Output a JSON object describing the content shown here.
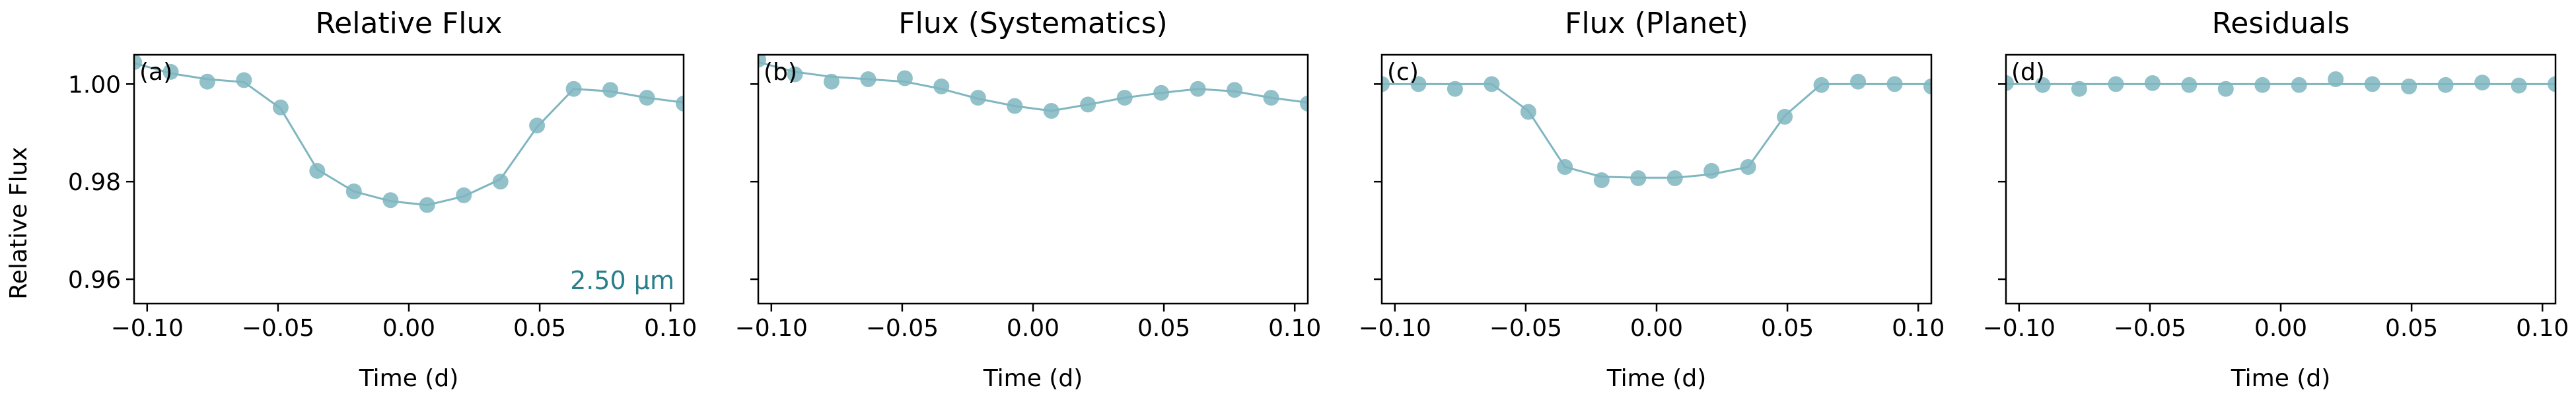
{
  "figure": {
    "shared_ylabel": "Relative Flux",
    "shared_xlabel": "Time (d)",
    "point_color": "#7fb6c0",
    "line_color": "#7fb6c0",
    "wavelength_color": "#2a7f8a",
    "wavelength_label": "2.50 µm"
  },
  "chart_data": [
    {
      "type": "scatter",
      "title": "Relative Flux",
      "panel_label": "(a)",
      "xlabel": "Time (d)",
      "ylabel": "Relative Flux",
      "xlim": [
        -0.105,
        0.105
      ],
      "ylim": [
        0.955,
        1.006
      ],
      "xticks": [
        -0.1,
        -0.05,
        0.0,
        0.05,
        0.1
      ],
      "xtick_labels": [
        "−0.10",
        "−0.05",
        "0.00",
        "0.05",
        "0.10"
      ],
      "yticks": [
        0.96,
        0.98,
        1.0
      ],
      "ytick_labels": [
        "0.96",
        "0.98",
        "1.00"
      ],
      "annotation": "2.50 µm",
      "series": [
        {
          "x": [
            -0.105,
            -0.091,
            -0.077,
            -0.063,
            -0.049,
            -0.035,
            -0.021,
            -0.007,
            0.007,
            0.021,
            0.035,
            0.049,
            0.063,
            0.077,
            0.091,
            0.105
          ],
          "y": [
            1.0045,
            1.0025,
            1.0005,
            1.0008,
            0.9952,
            0.9822,
            0.978,
            0.9762,
            0.9752,
            0.9772,
            0.98,
            0.9915,
            0.999,
            0.9988,
            0.9972,
            0.996
          ],
          "model": [
            1.0043,
            1.0022,
            1.001,
            1.0004,
            0.995,
            0.9825,
            0.978,
            0.976,
            0.9752,
            0.977,
            0.9805,
            0.9912,
            0.999,
            0.9985,
            0.9972,
            0.9962
          ]
        }
      ]
    },
    {
      "type": "scatter",
      "title": "Flux (Systematics)",
      "panel_label": "(b)",
      "xlabel": "Time (d)",
      "xlim": [
        -0.105,
        0.105
      ],
      "ylim": [
        0.955,
        1.006
      ],
      "xticks": [
        -0.1,
        -0.05,
        0.0,
        0.05,
        0.1
      ],
      "xtick_labels": [
        "−0.10",
        "−0.05",
        "0.00",
        "0.05",
        "0.10"
      ],
      "yticks": [
        0.96,
        0.98,
        1.0
      ],
      "series": [
        {
          "x": [
            -0.105,
            -0.091,
            -0.077,
            -0.063,
            -0.049,
            -0.035,
            -0.021,
            -0.007,
            0.007,
            0.021,
            0.035,
            0.049,
            0.063,
            0.077,
            0.091,
            0.105
          ],
          "y": [
            1.005,
            1.002,
            1.0005,
            1.001,
            1.0012,
            0.9995,
            0.9972,
            0.9955,
            0.9945,
            0.9958,
            0.9972,
            0.9982,
            0.999,
            0.9988,
            0.9972,
            0.996
          ],
          "model": [
            1.0045,
            1.0025,
            1.0015,
            1.001,
            1.0005,
            0.999,
            0.997,
            0.9955,
            0.9945,
            0.9958,
            0.9972,
            0.9982,
            0.999,
            0.9985,
            0.9972,
            0.9962
          ]
        }
      ]
    },
    {
      "type": "scatter",
      "title": "Flux (Planet)",
      "panel_label": "(c)",
      "xlabel": "Time (d)",
      "xlim": [
        -0.105,
        0.105
      ],
      "ylim": [
        0.955,
        1.006
      ],
      "xticks": [
        -0.1,
        -0.05,
        0.0,
        0.05,
        0.1
      ],
      "xtick_labels": [
        "−0.10",
        "−0.05",
        "0.00",
        "0.05",
        "0.10"
      ],
      "yticks": [
        0.96,
        0.98,
        1.0
      ],
      "series": [
        {
          "x": [
            -0.105,
            -0.091,
            -0.077,
            -0.063,
            -0.049,
            -0.035,
            -0.021,
            -0.007,
            0.007,
            0.021,
            0.035,
            0.049,
            0.063,
            0.077,
            0.091,
            0.105
          ],
          "y": [
            1.0,
            1.0,
            0.999,
            1.0,
            0.9943,
            0.983,
            0.9803,
            0.9807,
            0.9807,
            0.9822,
            0.983,
            0.9933,
            0.9998,
            1.0005,
            1.0,
            0.9995
          ],
          "model": [
            1.0,
            1.0,
            1.0,
            1.0,
            0.9945,
            0.983,
            0.981,
            0.9808,
            0.9808,
            0.9815,
            0.983,
            0.9935,
            1.0,
            1.0,
            1.0,
            1.0
          ]
        }
      ]
    },
    {
      "type": "scatter",
      "title": "Residuals",
      "panel_label": "(d)",
      "xlabel": "Time (d)",
      "xlim": [
        -0.105,
        0.105
      ],
      "ylim": [
        0.955,
        1.006
      ],
      "xticks": [
        -0.1,
        -0.05,
        0.0,
        0.05,
        0.1
      ],
      "xtick_labels": [
        "−0.10",
        "−0.05",
        "0.00",
        "0.05",
        "0.10"
      ],
      "yticks": [
        0.96,
        0.98,
        1.0
      ],
      "series": [
        {
          "x": [
            -0.105,
            -0.091,
            -0.077,
            -0.063,
            -0.049,
            -0.035,
            -0.021,
            -0.007,
            0.007,
            0.021,
            0.035,
            0.049,
            0.063,
            0.077,
            0.091,
            0.105
          ],
          "y": [
            1.0002,
            0.9998,
            0.999,
            1.0,
            1.0002,
            0.9998,
            0.999,
            0.9998,
            0.9998,
            1.001,
            1.0,
            0.9995,
            0.9998,
            1.0003,
            0.9997,
            1.0
          ],
          "model": [
            1.0,
            1.0,
            1.0,
            1.0,
            1.0,
            1.0,
            1.0,
            1.0,
            1.0,
            1.0,
            1.0,
            1.0,
            1.0,
            1.0,
            1.0,
            1.0
          ]
        }
      ]
    }
  ]
}
